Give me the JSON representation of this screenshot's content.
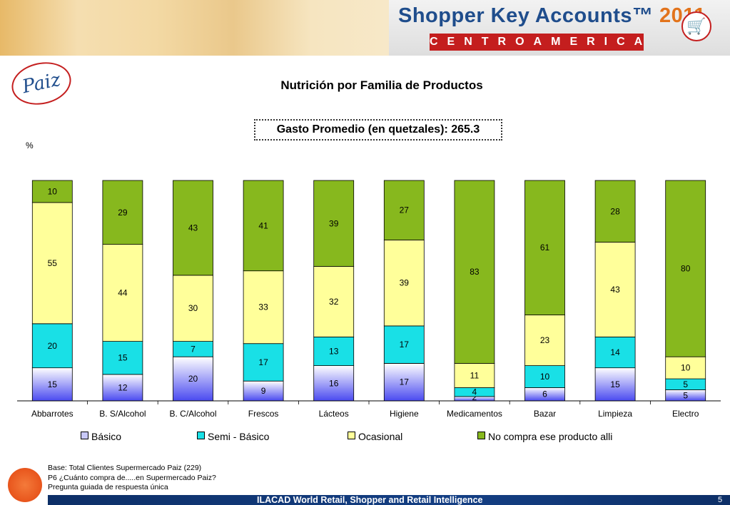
{
  "banner": {
    "title": "Shopper Key Accounts™",
    "year": "2011",
    "subtitle": "CENTROAMERICA"
  },
  "store_logo_text": "Paiz",
  "chart_data": {
    "type": "bar",
    "stacked": true,
    "title": "Nutrición por Familia de Productos",
    "subtitle": "Gasto Promedio (en quetzales): 265.3",
    "ylabel": "%",
    "ylim": [
      0,
      100
    ],
    "grid": false,
    "legend_position": "bottom",
    "categories": [
      "Abbarrotes",
      "B. S/Alcohol",
      "B. C/Alcohol",
      "Frescos",
      "Lácteos",
      "Higiene",
      "Medicamentos",
      "Bazar",
      "Limpieza",
      "Electro"
    ],
    "series": [
      {
        "name": "Básico",
        "color": "#c8c8f8",
        "values": [
          15,
          12,
          20,
          9,
          16,
          17,
          2,
          6,
          15,
          5
        ]
      },
      {
        "name": "Semi - Básico",
        "color": "#19e0e6",
        "values": [
          20,
          15,
          7,
          17,
          13,
          17,
          4,
          10,
          14,
          5
        ]
      },
      {
        "name": "Ocasional",
        "color": "#ffff9a",
        "values": [
          55,
          44,
          30,
          33,
          32,
          39,
          11,
          23,
          43,
          10
        ]
      },
      {
        "name": "No compra ese producto alli",
        "color": "#87b81e",
        "values": [
          10,
          29,
          43,
          41,
          39,
          27,
          83,
          61,
          28,
          80
        ]
      }
    ]
  },
  "notes": [
    "Base: Total Clientes Supermercado Paiz (229)",
    "P6 ¿Cuánto compra de.....en Supermercado Paiz?",
    "Pregunta guiada de respuesta única"
  ],
  "footer": {
    "text": "ILACAD World Retail, Shopper and Retail Intelligence",
    "page": "5"
  }
}
